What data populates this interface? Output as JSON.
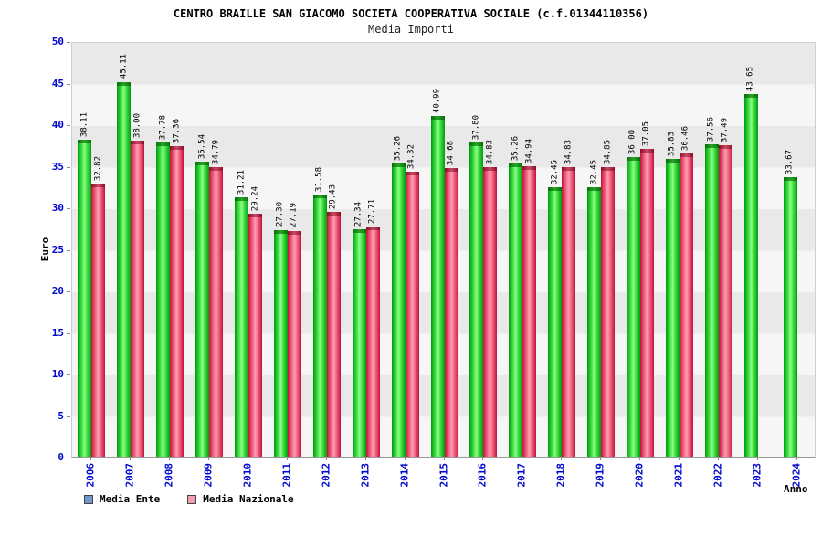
{
  "chart_data": {
    "type": "bar",
    "title": "CENTRO BRAILLE SAN GIACOMO SOCIETA COOPERATIVA SOCIALE (c.f.01344110356)",
    "subtitle": "Media Importi",
    "xlabel": "Anno",
    "ylabel": "Euro",
    "ylim": [
      0,
      50
    ],
    "ytick_step": 5,
    "grid": "horizontal-bands",
    "legend_position": "bottom-left",
    "value_label_format": "2-decimals",
    "categories": [
      "2006",
      "2007",
      "2008",
      "2009",
      "2010",
      "2011",
      "2012",
      "2013",
      "2014",
      "2015",
      "2016",
      "2017",
      "2018",
      "2019",
      "2020",
      "2021",
      "2022",
      "2023",
      "2024"
    ],
    "series": [
      {
        "name": "Media Ente",
        "bar_color": "#1fd21f",
        "legend_swatch": "#7596c8",
        "values": [
          38.11,
          45.11,
          37.78,
          35.54,
          31.21,
          27.3,
          31.58,
          27.34,
          35.26,
          40.99,
          37.8,
          35.26,
          32.45,
          32.45,
          36.0,
          35.83,
          37.56,
          43.65,
          33.67
        ]
      },
      {
        "name": "Media Nazionale",
        "bar_color": "#f4708e",
        "legend_swatch": "#efa0b0",
        "values": [
          32.82,
          38.0,
          37.36,
          34.79,
          29.24,
          27.19,
          29.43,
          27.71,
          34.32,
          34.68,
          34.83,
          34.94,
          34.83,
          34.85,
          37.05,
          36.46,
          37.49,
          null,
          null
        ]
      }
    ],
    "axis_text_color": "#0008cc"
  }
}
